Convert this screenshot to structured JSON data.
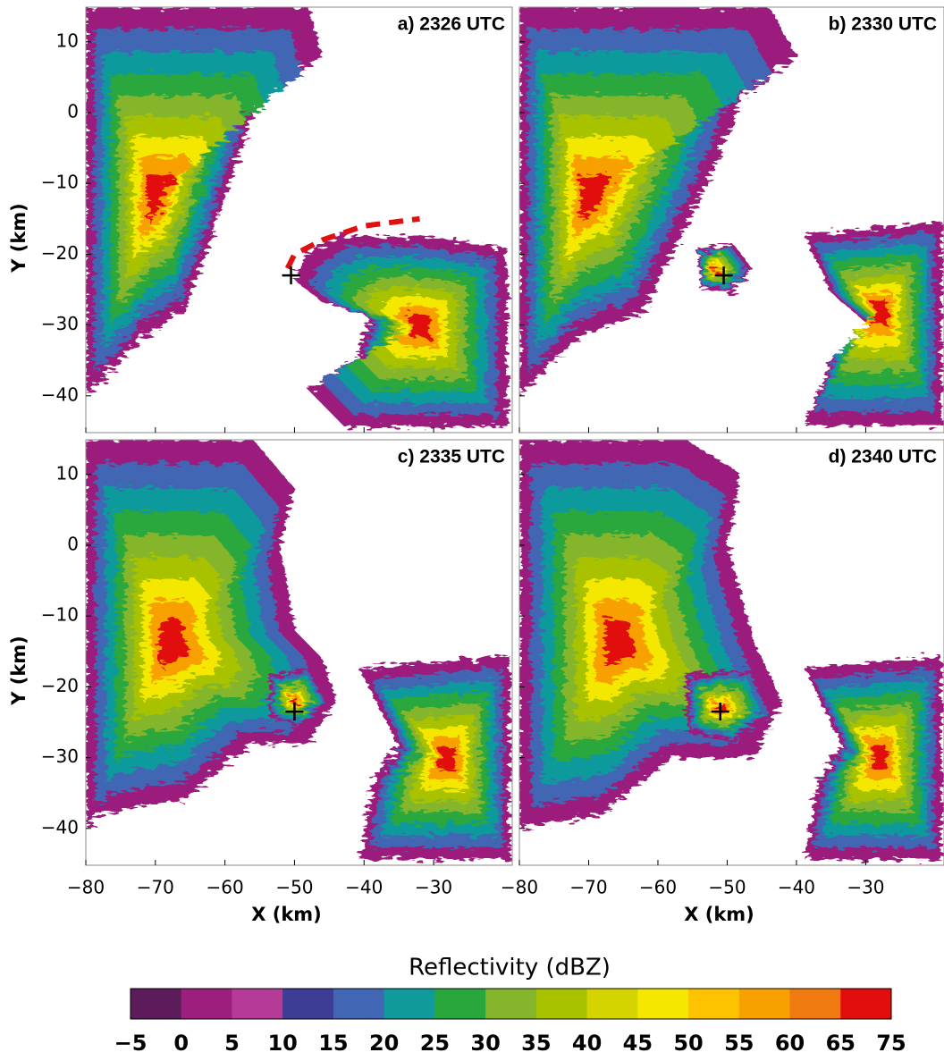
{
  "chart_data": [
    {
      "type": "radar",
      "title": "a) 2326 UTC",
      "marker": {
        "x": -50.5,
        "y": -23
      }
    },
    {
      "type": "radar",
      "title": "b) 2330 UTC",
      "marker": {
        "x": -50.5,
        "y": -23
      }
    },
    {
      "type": "radar",
      "title": "c) 2335 UTC",
      "marker": {
        "x": -50,
        "y": -23.5
      }
    },
    {
      "type": "radar",
      "title": "d) 2340 UTC",
      "marker": {
        "x": -51,
        "y": -23.5
      }
    }
  ],
  "axes": {
    "xlabel": "X (km)",
    "ylabel": "Y (km)",
    "xlim": [
      -80,
      -18.7
    ],
    "ylim": [
      -45.2,
      14.9
    ],
    "xticks": [
      {
        "value": -80,
        "label": "−80"
      },
      {
        "value": -70,
        "label": "−70"
      },
      {
        "value": -60,
        "label": "−60"
      },
      {
        "value": -50,
        "label": "−50"
      },
      {
        "value": -40,
        "label": "−40"
      },
      {
        "value": -30,
        "label": "−30"
      }
    ],
    "yticks": [
      {
        "value": -40,
        "label": "−40"
      },
      {
        "value": -30,
        "label": "−30"
      },
      {
        "value": -20,
        "label": "−20"
      },
      {
        "value": -10,
        "label": "−10"
      },
      0,
      10
    ]
  },
  "colorbar": {
    "title": "Reflectivity (dBZ)",
    "colors": [
      "#5c1c5a",
      "#9c1f7e",
      "#b53c96",
      "#3d3d96",
      "#4066b4",
      "#119a9c",
      "#2aa73c",
      "#85b52a",
      "#a8c200",
      "#d4d400",
      "#f5e800",
      "#fdc300",
      "#f7a000",
      "#ef7a10",
      "#e20d0d"
    ],
    "ticks": [
      {
        "value": -5,
        "label": "−5"
      },
      0,
      5,
      10,
      15,
      20,
      25,
      30,
      35,
      40,
      45,
      50,
      55,
      60,
      65,
      75
    ]
  }
}
